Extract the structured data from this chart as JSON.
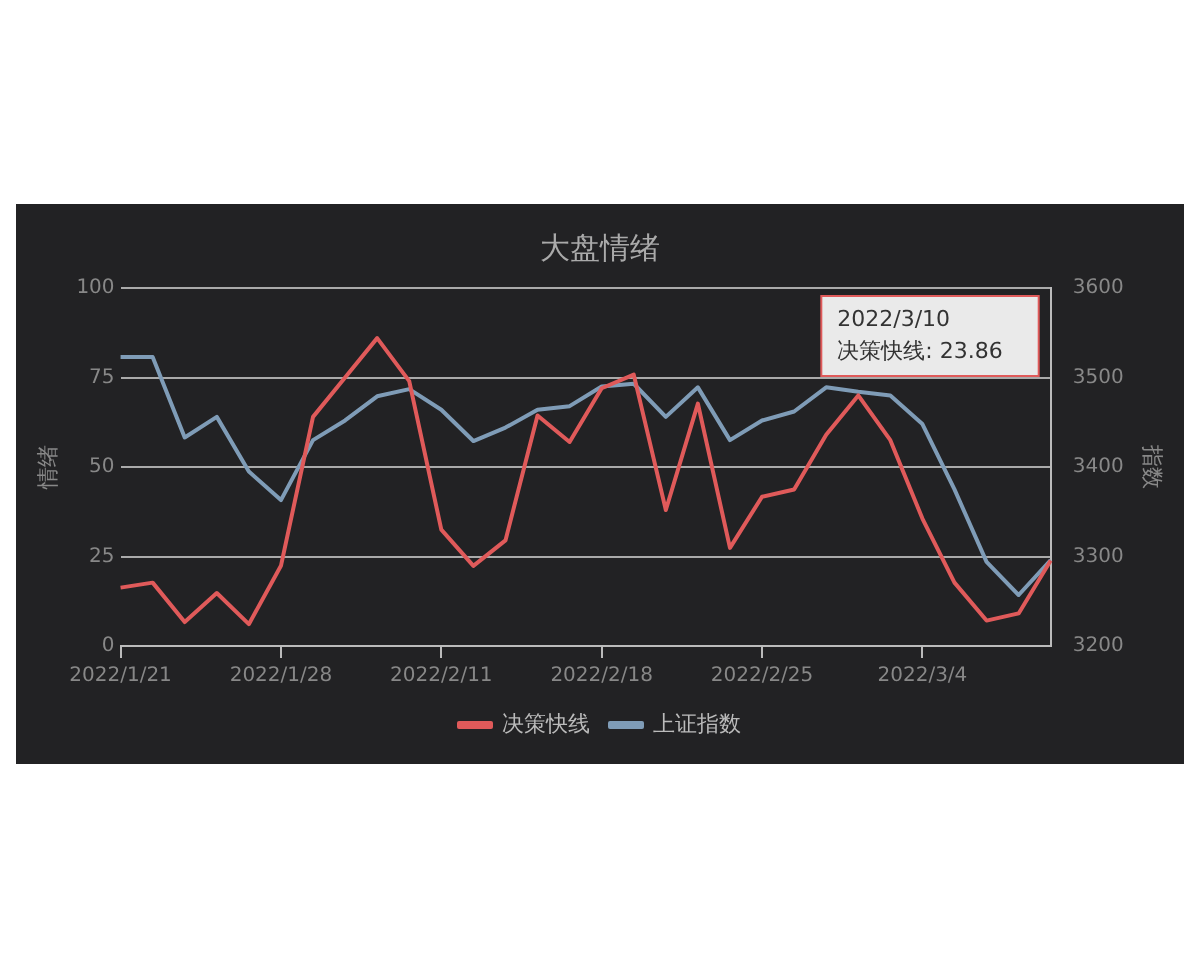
{
  "chart_data": {
    "type": "line",
    "title": "大盘情绪",
    "ylabel": "情绪",
    "y2label": "指数",
    "categories": [
      "2022/1/21",
      null,
      null,
      null,
      null,
      "2022/1/28",
      null,
      null,
      null,
      null,
      "2022/2/11",
      null,
      null,
      null,
      null,
      "2022/2/18",
      null,
      null,
      null,
      null,
      "2022/2/25",
      null,
      null,
      null,
      null,
      "2022/3/4",
      null,
      null,
      null,
      null
    ],
    "series": [
      {
        "name": "决策快线",
        "color": "#e05a5a",
        "values": [
          16.3,
          17.7,
          6.7,
          14.8,
          6.1,
          22.4,
          64,
          75,
          86,
          74,
          32.5,
          22.4,
          29.5,
          64.4,
          57,
          72,
          75.8,
          38,
          67.7,
          27.4,
          41.7,
          43.7,
          59,
          70,
          57.5,
          35.6,
          17.7,
          7.1,
          9.1,
          23.86
        ]
      },
      {
        "name": "上证指数",
        "color": "#7f9cb7",
        "axis": "y2",
        "values": [
          3523,
          3523,
          3433,
          3456,
          3395,
          3363,
          3430,
          3452,
          3479,
          3487,
          3464,
          3429,
          3444,
          3464,
          3468,
          3490,
          3493,
          3456,
          3489,
          3430,
          3452,
          3462,
          3489,
          3484,
          3480,
          3448,
          3375,
          3294,
          3257,
          3296
        ]
      }
    ],
    "ylim": [
      0,
      100
    ],
    "yticks": [
      0,
      25,
      50,
      75,
      100
    ],
    "y2lim": [
      3200,
      3600
    ],
    "y2ticks": [
      3200,
      3300,
      3400,
      3500,
      3600
    ],
    "grid": "y",
    "legend": "bottom",
    "marker": "none",
    "line_style": "solid",
    "annotations": [
      "2022/3/10 决策快线: 23.86"
    ]
  }
}
